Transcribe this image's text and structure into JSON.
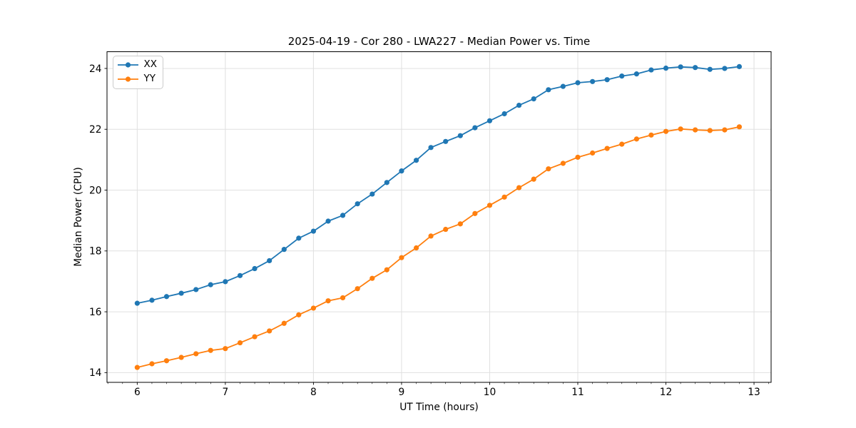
{
  "chart_data": {
    "type": "line",
    "title": "2025-04-19 - Cor 280 - LWA227 - Median Power vs. Time",
    "xlabel": "UT Time (hours)",
    "ylabel": "Median Power (CPU)",
    "grid": true,
    "legend_position": "upper-left",
    "xlim": [
      5.657,
      13.194
    ],
    "ylim": [
      13.68,
      24.55
    ],
    "xticks": [
      6,
      7,
      8,
      9,
      10,
      11,
      12,
      13
    ],
    "yticks": [
      14,
      16,
      18,
      20,
      22,
      24
    ],
    "minor_xtick_interval_hours": 0.1667,
    "x": [
      6.0,
      6.167,
      6.333,
      6.5,
      6.667,
      6.833,
      7.0,
      7.167,
      7.333,
      7.5,
      7.667,
      7.833,
      8.0,
      8.167,
      8.333,
      8.5,
      8.667,
      8.833,
      9.0,
      9.167,
      9.333,
      9.5,
      9.667,
      9.833,
      10.0,
      10.167,
      10.333,
      10.5,
      10.667,
      10.833,
      11.0,
      11.167,
      11.333,
      11.5,
      11.667,
      11.833,
      12.0,
      12.167,
      12.333,
      12.5,
      12.667,
      12.833
    ],
    "series": [
      {
        "name": "XX",
        "color": "#1f77b4",
        "marker": "circle",
        "values": [
          16.28,
          16.38,
          16.5,
          16.61,
          16.73,
          16.89,
          16.99,
          17.19,
          17.42,
          17.68,
          18.05,
          18.42,
          18.65,
          18.98,
          19.17,
          19.55,
          19.87,
          20.25,
          20.63,
          20.98,
          21.4,
          21.6,
          21.79,
          22.05,
          22.28,
          22.51,
          22.79,
          23.0,
          23.3,
          23.41,
          23.53,
          23.57,
          23.63,
          23.75,
          23.82,
          23.95,
          24.01,
          24.05,
          24.03,
          23.97,
          24.0,
          24.06
        ]
      },
      {
        "name": "YY",
        "color": "#ff7f0e",
        "marker": "circle",
        "values": [
          14.17,
          14.29,
          14.39,
          14.5,
          14.62,
          14.73,
          14.79,
          14.98,
          15.18,
          15.37,
          15.62,
          15.9,
          16.12,
          16.36,
          16.46,
          16.76,
          17.1,
          17.38,
          17.78,
          18.1,
          18.49,
          18.71,
          18.89,
          19.23,
          19.5,
          19.77,
          20.08,
          20.36,
          20.7,
          20.88,
          21.08,
          21.22,
          21.37,
          21.51,
          21.68,
          21.81,
          21.93,
          22.01,
          21.98,
          21.96,
          21.98,
          22.08
        ]
      }
    ]
  },
  "style": {
    "grid_color": "#e0e0e0",
    "spine_color": "#000000",
    "tick_color": "#000000",
    "text_color": "#000000",
    "legend_border_color": "#cccccc",
    "background_color": "#ffffff"
  }
}
